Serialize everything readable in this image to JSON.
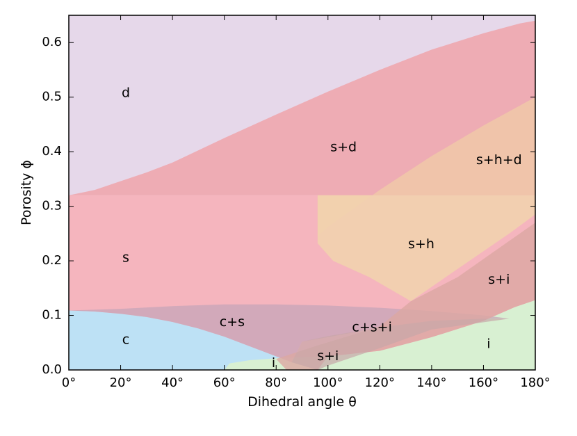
{
  "chart_data": {
    "type": "area",
    "title": "",
    "xlabel": "Dihedral angle θ",
    "ylabel": "Porosity ϕ",
    "xlim": [
      0,
      180
    ],
    "ylim": [
      0,
      0.65
    ],
    "xticks": [
      0,
      20,
      40,
      60,
      80,
      100,
      120,
      140,
      160,
      180
    ],
    "xtick_labels": [
      "0°",
      "20°",
      "40°",
      "60°",
      "80°",
      "100°",
      "120°",
      "140°",
      "160°",
      "180°"
    ],
    "yticks": [
      0.0,
      0.1,
      0.2,
      0.3,
      0.4,
      0.5,
      0.6
    ],
    "ytick_labels": [
      "0.0",
      "0.1",
      "0.2",
      "0.3",
      "0.4",
      "0.5",
      "0.6"
    ],
    "grid": false,
    "regions": [
      {
        "label": "d",
        "color": "#e6d8ea",
        "opacity": 1.0,
        "polygon": [
          [
            0,
            0.65
          ],
          [
            180,
            0.65
          ],
          [
            180,
            0.32
          ],
          [
            0,
            0.32
          ]
        ],
        "label_at": [
          22,
          0.507
        ]
      },
      {
        "label": "s",
        "color": "#f5b5be",
        "opacity": 1.0,
        "polygon": [
          [
            0,
            0.32
          ],
          [
            180,
            0.32
          ],
          [
            180,
            0.0
          ],
          [
            0,
            0.0
          ]
        ],
        "label_at": [
          22,
          0.205
        ]
      },
      {
        "label": "s+d",
        "color": "#eeacb4",
        "opacity": 1.0,
        "polygon": [
          [
            0,
            0.32
          ],
          [
            10,
            0.33
          ],
          [
            20,
            0.346
          ],
          [
            30,
            0.362
          ],
          [
            40,
            0.38
          ],
          [
            60,
            0.425
          ],
          [
            80,
            0.468
          ],
          [
            100,
            0.51
          ],
          [
            120,
            0.55
          ],
          [
            140,
            0.587
          ],
          [
            160,
            0.617
          ],
          [
            174,
            0.635
          ],
          [
            180,
            0.64
          ],
          [
            180,
            0.32
          ]
        ],
        "label_at": [
          106,
          0.408
        ]
      },
      {
        "label": "c",
        "color": "#bde1f5",
        "opacity": 1.0,
        "polygon": [
          [
            0,
            0.109
          ],
          [
            10,
            0.107
          ],
          [
            20,
            0.103
          ],
          [
            30,
            0.097
          ],
          [
            40,
            0.088
          ],
          [
            50,
            0.076
          ],
          [
            60,
            0.061
          ],
          [
            70,
            0.043
          ],
          [
            80,
            0.025
          ],
          [
            86,
            0.014
          ],
          [
            90,
            0.0
          ],
          [
            0,
            0.0
          ]
        ],
        "label_at": [
          22,
          0.055
        ]
      },
      {
        "label": "i",
        "color": "#d8f0d2",
        "opacity": 1.0,
        "polygon": [
          [
            60,
            0.0
          ],
          [
            62,
            0.012
          ],
          [
            70,
            0.018
          ],
          [
            82,
            0.022
          ],
          [
            100,
            0.025
          ],
          [
            120,
            0.035
          ],
          [
            140,
            0.06
          ],
          [
            160,
            0.09
          ],
          [
            172,
            0.115
          ],
          [
            180,
            0.128
          ],
          [
            180,
            0.0
          ]
        ],
        "label_at": [
          162,
          0.047
        ]
      },
      {
        "label": "c+s",
        "color": "#c5a6b8",
        "opacity": 0.75,
        "polygon": [
          [
            0,
            0.109
          ],
          [
            20,
            0.112
          ],
          [
            40,
            0.117
          ],
          [
            60,
            0.12
          ],
          [
            80,
            0.12
          ],
          [
            100,
            0.118
          ],
          [
            120,
            0.114
          ],
          [
            140,
            0.108
          ],
          [
            160,
            0.1
          ],
          [
            170,
            0.094
          ],
          [
            160,
            0.094
          ],
          [
            140,
            0.09
          ],
          [
            120,
            0.078
          ],
          [
            100,
            0.06
          ],
          [
            90,
            0.052
          ],
          [
            86,
            0.014
          ],
          [
            80,
            0.025
          ],
          [
            70,
            0.043
          ],
          [
            60,
            0.061
          ],
          [
            50,
            0.076
          ],
          [
            40,
            0.088
          ],
          [
            30,
            0.097
          ],
          [
            20,
            0.103
          ],
          [
            10,
            0.107
          ]
        ],
        "label_at": [
          63,
          0.087
        ]
      },
      {
        "label": "s+h+d",
        "color": "#f0c8a8",
        "opacity": 0.85,
        "polygon": [
          [
            96,
            0.245
          ],
          [
            100,
            0.262
          ],
          [
            120,
            0.33
          ],
          [
            140,
            0.392
          ],
          [
            160,
            0.448
          ],
          [
            180,
            0.5
          ],
          [
            180,
            0.32
          ],
          [
            96,
            0.32
          ]
        ],
        "label_at": [
          166,
          0.384
        ]
      },
      {
        "label": "s+h",
        "color": "#f2d1ae",
        "opacity": 0.9,
        "polygon": [
          [
            96,
            0.245
          ],
          [
            96,
            0.232
          ],
          [
            102,
            0.2
          ],
          [
            116,
            0.17
          ],
          [
            132,
            0.126
          ],
          [
            150,
            0.185
          ],
          [
            170,
            0.25
          ],
          [
            180,
            0.285
          ],
          [
            180,
            0.32
          ],
          [
            96,
            0.32
          ]
        ],
        "label_at": [
          136,
          0.23
        ]
      },
      {
        "label": "s+i",
        "color": "#dca8a2",
        "opacity": 0.8,
        "polygon": [
          [
            132,
            0.126
          ],
          [
            150,
            0.17
          ],
          [
            165,
            0.22
          ],
          [
            180,
            0.27
          ],
          [
            180,
            0.128
          ],
          [
            172,
            0.115
          ],
          [
            160,
            0.09
          ],
          [
            140,
            0.06
          ],
          [
            120,
            0.035
          ],
          [
            100,
            0.025
          ],
          [
            96,
            0.0
          ],
          [
            90,
            0.0
          ],
          [
            84,
            0.0
          ],
          [
            80,
            0.02
          ],
          [
            96,
            0.045
          ],
          [
            110,
            0.065
          ],
          [
            120,
            0.08
          ]
        ],
        "label_at": [
          166,
          0.165
        ]
      },
      {
        "label": "c+s+i",
        "color": "#c8a6a8",
        "opacity": 0.7,
        "polygon": [
          [
            90,
            0.052
          ],
          [
            100,
            0.062
          ],
          [
            120,
            0.078
          ],
          [
            140,
            0.09
          ],
          [
            160,
            0.094
          ],
          [
            170,
            0.094
          ],
          [
            140,
            0.074
          ],
          [
            120,
            0.04
          ],
          [
            100,
            0.008
          ],
          [
            96,
            0.0
          ],
          [
            86,
            0.014
          ]
        ],
        "label_at": [
          117,
          0.078
        ]
      }
    ],
    "extra_labels": [
      {
        "text": "s+i",
        "at": [
          100,
          0.025
        ]
      },
      {
        "text": "i",
        "at": [
          79,
          0.012
        ]
      }
    ]
  }
}
